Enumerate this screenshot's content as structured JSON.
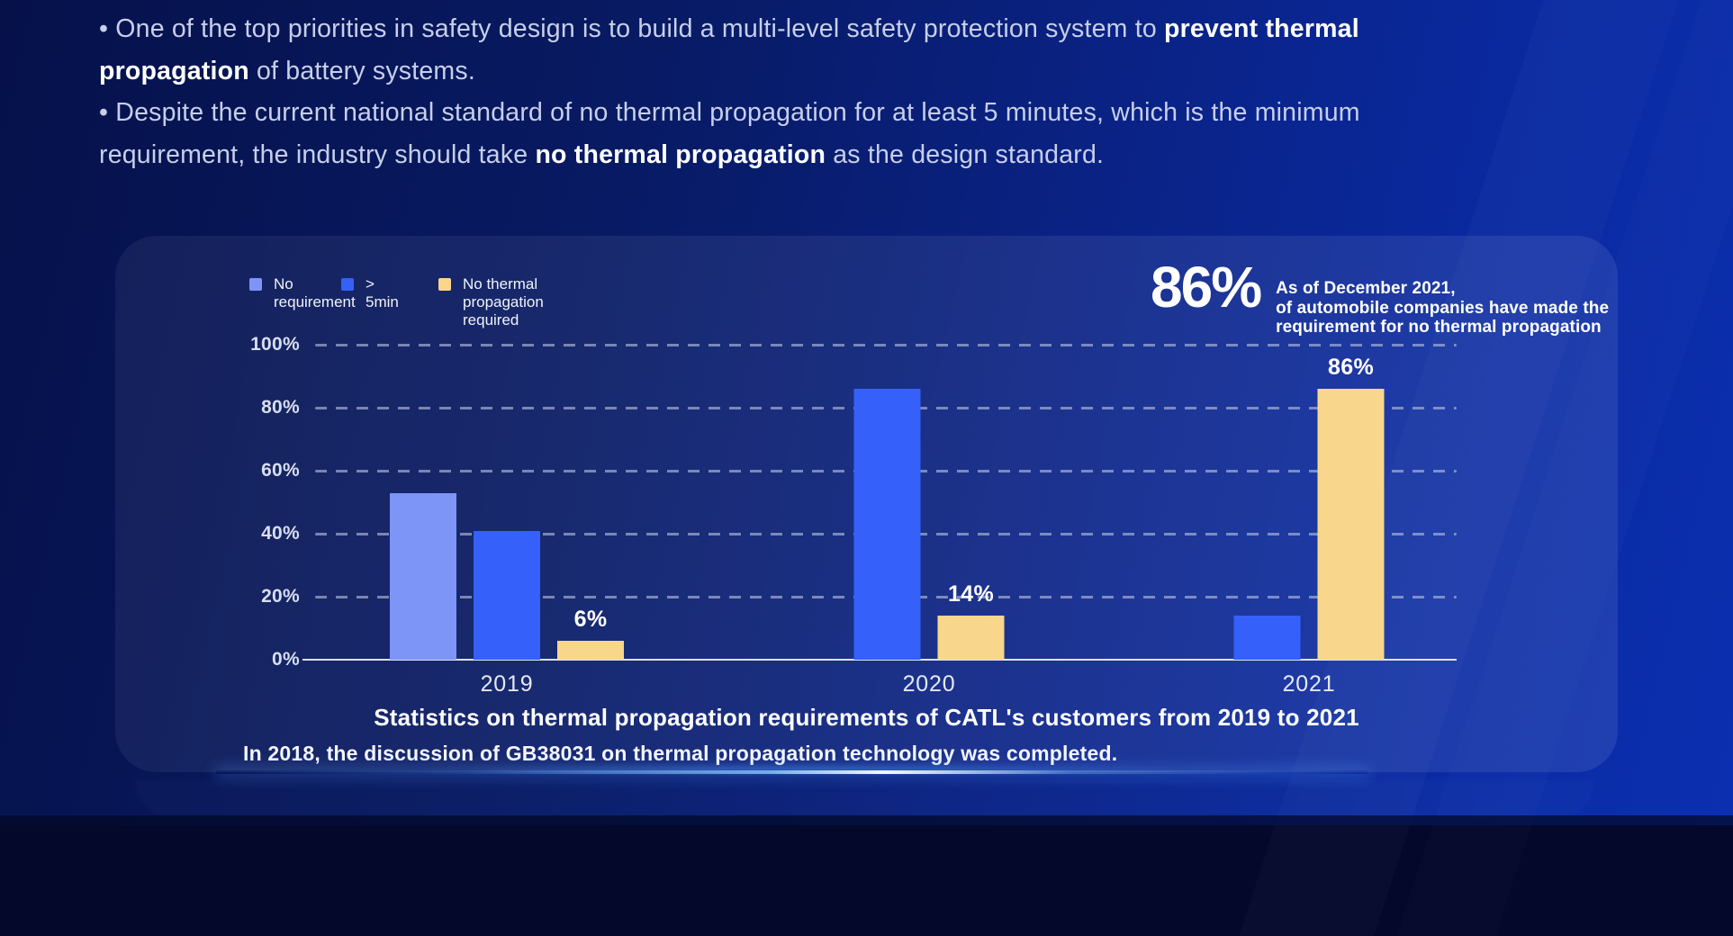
{
  "slide": {
    "bullets": {
      "lines": [
        {
          "parts": [
            {
              "text": "• One of the top priorities in safety design is to build a multi-level safety protection system to ",
              "bold": false
            },
            {
              "text": "prevent thermal",
              "bold": true
            }
          ]
        },
        {
          "parts": [
            {
              "text": "propagation",
              "bold": true
            },
            {
              "text": " of battery systems.",
              "bold": false
            }
          ]
        },
        {
          "parts": [
            {
              "text": "• Despite the current national standard of no thermal propagation for at least 5 minutes, which is the minimum",
              "bold": false
            }
          ]
        },
        {
          "parts": [
            {
              "text": "requirement, the industry should take ",
              "bold": false
            },
            {
              "text": "no thermal propagation",
              "bold": true
            },
            {
              "text": " as the design standard.",
              "bold": false
            }
          ]
        }
      ]
    },
    "stat": {
      "value": "86%",
      "description_lines": [
        "As of December 2021,",
        "of automobile companies have made the",
        "requirement for no thermal propagation"
      ]
    },
    "footnote": "In 2018, the discussion of GB38031 on thermal propagation technology was completed."
  },
  "chart_data": {
    "type": "bar",
    "title": "Statistics on thermal propagation requirements of CATL's customers from 2019 to 2021",
    "categories": [
      "2019",
      "2020",
      "2021"
    ],
    "series": [
      {
        "name": "No requirement",
        "color": "#7d95f6",
        "values": [
          53,
          0,
          0
        ],
        "data_labels": [
          "",
          "",
          ""
        ]
      },
      {
        "name": "> 5min",
        "color": "#3560fa",
        "values": [
          41,
          86,
          14
        ],
        "data_labels": [
          "",
          "",
          ""
        ]
      },
      {
        "name": "No thermal propagation required",
        "color": "#f8d68b",
        "values": [
          6,
          14,
          86
        ],
        "data_labels": [
          "6%",
          "14%",
          "86%"
        ]
      }
    ],
    "y_ticks": [
      "0%",
      "20%",
      "40%",
      "60%",
      "80%",
      "100%"
    ],
    "ylim": [
      0,
      100
    ],
    "grid": "dashed-horizontal",
    "legend_position": "top-left"
  },
  "colors": {
    "background_left": "#06114a",
    "background_right": "#0b2fb0",
    "bar_light_blue": "#7d95f6",
    "bar_blue": "#3560fa",
    "bar_yellow": "#f8d68b",
    "glow_core": "#f2faff"
  }
}
